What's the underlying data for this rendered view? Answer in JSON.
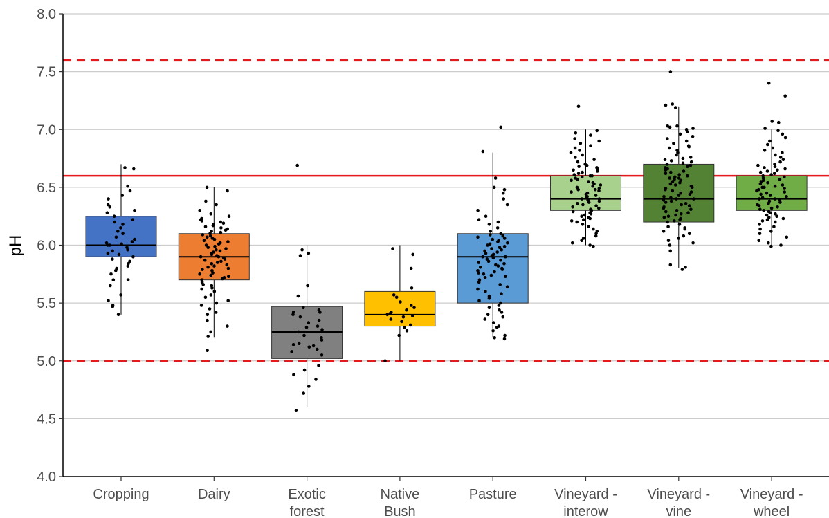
{
  "chart_data": {
    "type": "boxplot",
    "title": "",
    "xlabel": "",
    "ylabel": "pH",
    "ylim": [
      4.0,
      8.0
    ],
    "yticks": [
      "4.0",
      "4.5",
      "5.0",
      "5.5",
      "6.0",
      "6.5",
      "7.0",
      "7.5",
      "8.0"
    ],
    "grid": "horizontal major",
    "reference_lines": [
      {
        "value": 7.6,
        "style": "dashed",
        "color": "#e41a1c"
      },
      {
        "value": 6.6,
        "style": "solid",
        "color": "#e41a1c"
      },
      {
        "value": 5.0,
        "style": "dashed",
        "color": "#e41a1c"
      }
    ],
    "categories": [
      {
        "label": [
          "Cropping"
        ],
        "color": "#4472c4",
        "q1": 5.9,
        "median": 6.0,
        "q3": 6.25,
        "whisker_low": 5.4,
        "whisker_high": 6.7,
        "n_points": 45,
        "points": [
          5.4,
          5.47,
          5.48,
          5.52,
          5.57,
          5.65,
          5.7,
          5.7,
          5.75,
          5.78,
          5.8,
          5.82,
          5.84,
          5.86,
          5.88,
          5.9,
          5.92,
          5.93,
          5.95,
          5.96,
          5.98,
          6.0,
          6.0,
          6.01,
          6.02,
          6.03,
          6.05,
          6.07,
          6.1,
          6.12,
          6.15,
          6.18,
          6.2,
          6.22,
          6.25,
          6.28,
          6.3,
          6.33,
          6.35,
          6.4,
          6.43,
          6.47,
          6.51,
          6.66,
          6.67
        ]
      },
      {
        "label": [
          "Dairy"
        ],
        "color": "#ed7d31",
        "q1": 5.7,
        "median": 5.9,
        "q3": 6.1,
        "whisker_low": 5.2,
        "whisker_high": 6.5,
        "n_points": 80,
        "points": [
          5.09,
          5.21,
          5.25,
          5.3,
          5.35,
          5.4,
          5.42,
          5.45,
          5.48,
          5.5,
          5.52,
          5.55,
          5.57,
          5.6,
          5.62,
          5.63,
          5.65,
          5.66,
          5.68,
          5.7,
          5.71,
          5.72,
          5.73,
          5.74,
          5.75,
          5.76,
          5.78,
          5.79,
          5.8,
          5.81,
          5.82,
          5.83,
          5.84,
          5.85,
          5.86,
          5.87,
          5.88,
          5.89,
          5.9,
          5.9,
          5.91,
          5.92,
          5.93,
          5.94,
          5.95,
          5.96,
          5.97,
          5.98,
          5.99,
          6.0,
          6.01,
          6.02,
          6.03,
          6.04,
          6.05,
          6.06,
          6.07,
          6.08,
          6.09,
          6.1,
          6.11,
          6.12,
          6.13,
          6.14,
          6.15,
          6.16,
          6.17,
          6.18,
          6.19,
          6.2,
          6.21,
          6.22,
          6.23,
          6.25,
          6.27,
          6.3,
          6.35,
          6.38,
          6.47,
          6.5
        ]
      },
      {
        "label": [
          "Exotic",
          "forest"
        ],
        "color": "#808080",
        "q1": 5.02,
        "median": 5.25,
        "q3": 5.47,
        "whisker_low": 4.6,
        "whisker_high": 6.0,
        "n_points": 35,
        "points": [
          4.57,
          4.72,
          4.78,
          4.84,
          4.88,
          4.92,
          4.96,
          5.05,
          5.08,
          5.1,
          5.12,
          5.13,
          5.14,
          5.15,
          5.18,
          5.2,
          5.22,
          5.25,
          5.27,
          5.29,
          5.3,
          5.33,
          5.35,
          5.38,
          5.4,
          5.42,
          5.42,
          5.44,
          5.46,
          5.56,
          5.65,
          5.91,
          5.93,
          5.96,
          6.69
        ]
      },
      {
        "label": [
          "Native",
          "Bush"
        ],
        "color": "#ffc000",
        "q1": 5.3,
        "median": 5.4,
        "q3": 5.6,
        "whisker_low": 5.0,
        "whisker_high": 6.0,
        "n_points": 22,
        "points": [
          5.0,
          5.22,
          5.26,
          5.29,
          5.31,
          5.34,
          5.36,
          5.38,
          5.39,
          5.4,
          5.41,
          5.42,
          5.44,
          5.46,
          5.48,
          5.51,
          5.55,
          5.57,
          5.63,
          5.8,
          5.92,
          5.97
        ]
      },
      {
        "label": [
          "Pasture"
        ],
        "color": "#5b9bd5",
        "q1": 5.5,
        "median": 5.9,
        "q3": 6.1,
        "whisker_low": 5.2,
        "whisker_high": 6.8,
        "n_points": 80,
        "points": [
          5.19,
          5.2,
          5.22,
          5.26,
          5.29,
          5.3,
          5.33,
          5.36,
          5.38,
          5.4,
          5.42,
          5.44,
          5.46,
          5.48,
          5.5,
          5.52,
          5.54,
          5.56,
          5.58,
          5.6,
          5.62,
          5.64,
          5.66,
          5.68,
          5.7,
          5.72,
          5.73,
          5.74,
          5.75,
          5.76,
          5.77,
          5.78,
          5.79,
          5.8,
          5.81,
          5.82,
          5.83,
          5.84,
          5.85,
          5.86,
          5.87,
          5.88,
          5.89,
          5.9,
          5.9,
          5.91,
          5.92,
          5.93,
          5.94,
          5.95,
          5.96,
          5.97,
          5.98,
          5.99,
          6.0,
          6.01,
          6.02,
          6.03,
          6.04,
          6.05,
          6.06,
          6.07,
          6.08,
          6.09,
          6.1,
          6.12,
          6.15,
          6.18,
          6.2,
          6.22,
          6.25,
          6.3,
          6.35,
          6.4,
          6.45,
          6.48,
          6.5,
          6.58,
          6.81,
          7.02
        ]
      },
      {
        "label": [
          "Vineyard -",
          "interow"
        ],
        "color": "#a9d18e",
        "q1": 6.3,
        "median": 6.4,
        "q3": 6.6,
        "whisker_low": 6.0,
        "whisker_high": 7.0,
        "n_points": 80,
        "points": [
          5.99,
          6.0,
          6.02,
          6.04,
          6.06,
          6.08,
          6.1,
          6.12,
          6.14,
          6.16,
          6.18,
          6.2,
          6.21,
          6.22,
          6.23,
          6.24,
          6.25,
          6.26,
          6.27,
          6.28,
          6.29,
          6.3,
          6.31,
          6.32,
          6.33,
          6.34,
          6.35,
          6.36,
          6.37,
          6.38,
          6.39,
          6.4,
          6.4,
          6.41,
          6.42,
          6.43,
          6.44,
          6.45,
          6.46,
          6.47,
          6.48,
          6.49,
          6.5,
          6.51,
          6.52,
          6.53,
          6.54,
          6.55,
          6.56,
          6.57,
          6.58,
          6.59,
          6.6,
          6.61,
          6.62,
          6.63,
          6.64,
          6.65,
          6.66,
          6.67,
          6.68,
          6.69,
          6.7,
          6.72,
          6.74,
          6.76,
          6.78,
          6.8,
          6.82,
          6.84,
          6.86,
          6.88,
          6.9,
          6.92,
          6.95,
          6.97,
          6.99,
          6.6,
          6.48,
          7.2
        ]
      },
      {
        "label": [
          "Vineyard -",
          "vine"
        ],
        "color": "#548235",
        "q1": 6.2,
        "median": 6.4,
        "q3": 6.7,
        "whisker_low": 5.8,
        "whisker_high": 7.2,
        "n_points": 95,
        "points": [
          5.79,
          5.81,
          5.83,
          5.95,
          6.0,
          6.02,
          6.04,
          6.06,
          6.08,
          6.1,
          6.12,
          6.14,
          6.15,
          6.16,
          6.18,
          6.2,
          6.21,
          6.22,
          6.23,
          6.24,
          6.25,
          6.26,
          6.27,
          6.28,
          6.29,
          6.3,
          6.31,
          6.32,
          6.33,
          6.34,
          6.35,
          6.36,
          6.37,
          6.38,
          6.39,
          6.4,
          6.4,
          6.41,
          6.42,
          6.43,
          6.44,
          6.45,
          6.46,
          6.47,
          6.48,
          6.49,
          6.5,
          6.51,
          6.52,
          6.53,
          6.54,
          6.55,
          6.56,
          6.57,
          6.58,
          6.59,
          6.6,
          6.61,
          6.62,
          6.63,
          6.64,
          6.65,
          6.66,
          6.67,
          6.68,
          6.69,
          6.7,
          6.71,
          6.72,
          6.73,
          6.74,
          6.75,
          6.76,
          6.78,
          6.8,
          6.82,
          6.84,
          6.86,
          6.88,
          6.9,
          6.92,
          6.94,
          6.96,
          6.98,
          7.0,
          7.01,
          7.02,
          7.03,
          7.03,
          6.85,
          6.58,
          7.19,
          7.21,
          7.22,
          7.5
        ]
      },
      {
        "label": [
          "Vineyard -",
          "wheel"
        ],
        "color": "#70ad47",
        "q1": 6.3,
        "median": 6.4,
        "q3": 6.6,
        "whisker_low": 6.0,
        "whisker_high": 7.0,
        "n_points": 80,
        "points": [
          5.99,
          6.0,
          6.02,
          6.04,
          6.07,
          6.1,
          6.12,
          6.14,
          6.16,
          6.18,
          6.2,
          6.21,
          6.22,
          6.23,
          6.24,
          6.25,
          6.26,
          6.27,
          6.28,
          6.29,
          6.3,
          6.31,
          6.32,
          6.33,
          6.34,
          6.35,
          6.36,
          6.37,
          6.38,
          6.39,
          6.4,
          6.4,
          6.41,
          6.42,
          6.43,
          6.44,
          6.45,
          6.46,
          6.47,
          6.48,
          6.49,
          6.5,
          6.51,
          6.52,
          6.53,
          6.54,
          6.55,
          6.56,
          6.57,
          6.58,
          6.59,
          6.6,
          6.61,
          6.62,
          6.63,
          6.64,
          6.65,
          6.66,
          6.67,
          6.68,
          6.69,
          6.7,
          6.72,
          6.74,
          6.76,
          6.78,
          6.8,
          6.82,
          6.84,
          6.87,
          6.9,
          6.93,
          6.96,
          6.99,
          7.01,
          7.06,
          7.07,
          7.29,
          7.4,
          6.5
        ]
      }
    ]
  }
}
